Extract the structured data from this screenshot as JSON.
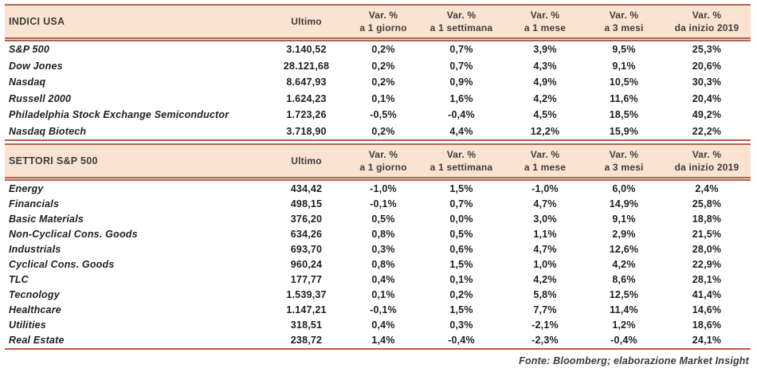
{
  "shared": {
    "ultimo_label": "Ultimo",
    "var_label": "Var. %",
    "periods": [
      "a 1 giorno",
      "a 1 settimana",
      "a 1 mese",
      "a 3 mesi",
      "da inizio 2019"
    ]
  },
  "tables": [
    {
      "title": "INDICI USA",
      "rows": [
        {
          "name": "S&P 500",
          "ultimo": "3.140,52",
          "vars": [
            "0,2%",
            "0,7%",
            "3,9%",
            "9,5%",
            "25,3%"
          ]
        },
        {
          "name": "Dow Jones",
          "ultimo": "28.121,68",
          "vars": [
            "0,2%",
            "0,7%",
            "4,3%",
            "9,1%",
            "20,6%"
          ]
        },
        {
          "name": "Nasdaq",
          "ultimo": "8.647,93",
          "vars": [
            "0,2%",
            "0,9%",
            "4,9%",
            "10,5%",
            "30,3%"
          ]
        },
        {
          "name": "Russell 2000",
          "ultimo": "1.624,23",
          "vars": [
            "0,1%",
            "1,6%",
            "4,2%",
            "11,6%",
            "20,4%"
          ]
        },
        {
          "name": "Philadelphia Stock Exchange Semiconductor",
          "ultimo": "1.723,26",
          "vars": [
            "-0,5%",
            "-0,4%",
            "4,5%",
            "18,5%",
            "49,2%"
          ]
        },
        {
          "name": "Nasdaq Biotech",
          "ultimo": "3.718,90",
          "vars": [
            "0,2%",
            "4,4%",
            "12,2%",
            "15,9%",
            "22,2%"
          ]
        }
      ]
    },
    {
      "title": "SETTORI S&P 500",
      "rows": [
        {
          "name": "Energy",
          "ultimo": "434,42",
          "vars": [
            "-1,0%",
            "1,5%",
            "-1,0%",
            "6,0%",
            "2,4%"
          ]
        },
        {
          "name": "Financials",
          "ultimo": "498,15",
          "vars": [
            "-0,1%",
            "0,7%",
            "4,7%",
            "14,9%",
            "25,8%"
          ]
        },
        {
          "name": "Basic Materials",
          "ultimo": "376,20",
          "vars": [
            "0,5%",
            "0,0%",
            "3,0%",
            "9,1%",
            "18,8%"
          ]
        },
        {
          "name": "Non-Cyclical Cons. Goods",
          "ultimo": "634,26",
          "vars": [
            "0,8%",
            "0,5%",
            "1,1%",
            "2,9%",
            "21,5%"
          ]
        },
        {
          "name": "Industrials",
          "ultimo": "693,70",
          "vars": [
            "0,3%",
            "0,6%",
            "4,7%",
            "12,6%",
            "28,0%"
          ]
        },
        {
          "name": "Cyclical Cons. Goods",
          "ultimo": "960,24",
          "vars": [
            "0,8%",
            "1,5%",
            "1,0%",
            "4,2%",
            "22,9%"
          ]
        },
        {
          "name": "TLC",
          "ultimo": "177,77",
          "vars": [
            "0,4%",
            "0,1%",
            "4,2%",
            "8,6%",
            "28,1%"
          ]
        },
        {
          "name": "Tecnology",
          "ultimo": "1.539,37",
          "vars": [
            "0,1%",
            "0,2%",
            "5,8%",
            "12,5%",
            "41,4%"
          ]
        },
        {
          "name": "Healthcare",
          "ultimo": "1.147,21",
          "vars": [
            "-0,1%",
            "1,5%",
            "7,7%",
            "11,4%",
            "14,6%"
          ]
        },
        {
          "name": "Utilities",
          "ultimo": "318,51",
          "vars": [
            "0,4%",
            "0,3%",
            "-2,1%",
            "1,2%",
            "18,6%"
          ]
        },
        {
          "name": "Real Estate",
          "ultimo": "238,72",
          "vars": [
            "1,4%",
            "-0,4%",
            "-2,3%",
            "-0,4%",
            "24,1%"
          ]
        }
      ]
    }
  ],
  "footer": {
    "text": "Fonte: Bloomberg; elaborazione Market Insight"
  },
  "colors": {
    "band_background": "#fae3d1",
    "band_border": "#b06550",
    "table_bottom_line": "#bf5848",
    "header_text": "#3d3d3d",
    "data_text": "#1e1e1e"
  }
}
